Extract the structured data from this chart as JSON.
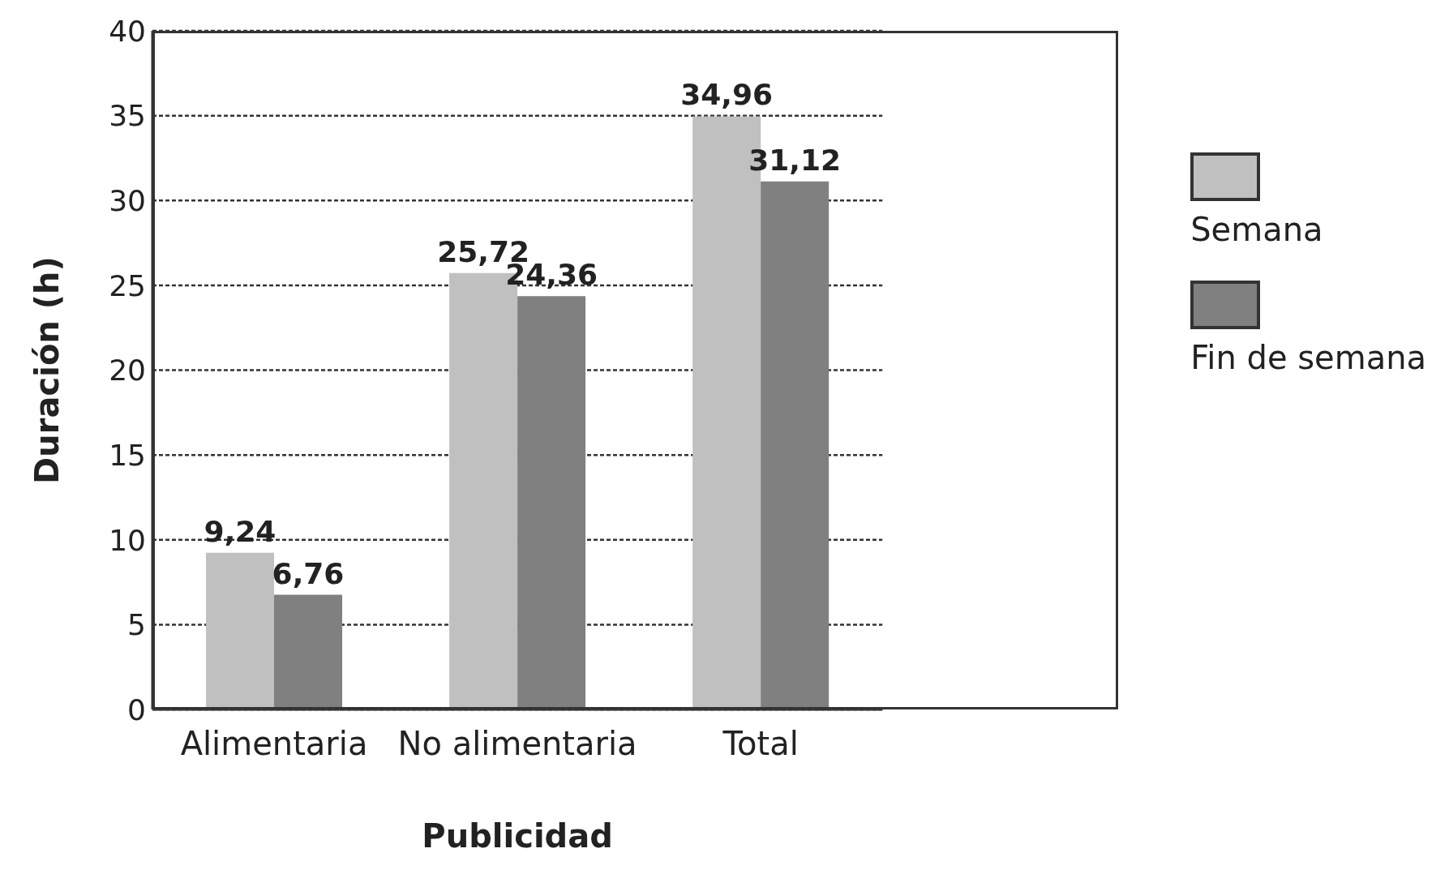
{
  "chart_data": {
    "type": "bar",
    "xlabel": "Publicidad",
    "ylabel": "Duración (h)",
    "categories": [
      "Alimentaria",
      "No alimentaria",
      "Total"
    ],
    "series": [
      {
        "name": "Semana",
        "color": "#c0c0c0",
        "values": [
          9.24,
          25.72,
          34.96
        ],
        "value_labels": [
          "9,24",
          "25,72",
          "34,96"
        ]
      },
      {
        "name": "Fin de semana",
        "color": "#808080",
        "values": [
          6.76,
          24.36,
          31.12
        ],
        "value_labels": [
          "6,76",
          "24,36",
          "31,12"
        ]
      }
    ],
    "ylim": [
      0,
      40
    ],
    "yticks": [
      0,
      5,
      10,
      15,
      20,
      25,
      30,
      35,
      40
    ],
    "grid": "y",
    "legend": "right"
  }
}
